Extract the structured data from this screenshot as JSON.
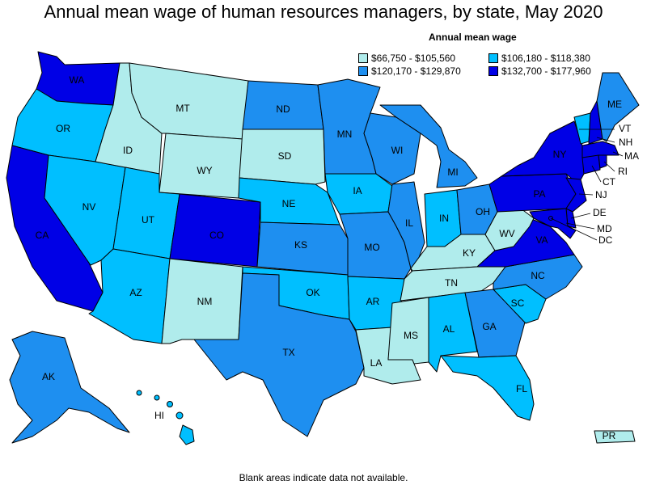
{
  "title": "Annual mean wage of human resources managers, by state, May 2020",
  "legend": {
    "title": "Annual mean wage",
    "items": [
      {
        "label": "$66,750 - $105,560",
        "color": "#b0ecec"
      },
      {
        "label": "$106,180 - $118,380",
        "color": "#00bfff"
      },
      {
        "label": "$120,170 - $129,870",
        "color": "#1e8ff0"
      },
      {
        "label": "$132,700 - $177,960",
        "color": "#0000e6"
      }
    ]
  },
  "footnote": "Blank areas indicate data not available.",
  "states": {
    "WA": 3,
    "OR": 1,
    "CA": 3,
    "NV": 1,
    "ID": 0,
    "MT": 0,
    "WY": 0,
    "UT": 1,
    "AZ": 1,
    "CO": 3,
    "NM": 0,
    "ND": 2,
    "SD": 0,
    "NE": 1,
    "KS": 2,
    "OK": 1,
    "TX": 2,
    "MN": 2,
    "IA": 1,
    "MO": 2,
    "AR": 1,
    "LA": 0,
    "WI": 2,
    "IL": 2,
    "MI": 2,
    "IN": 1,
    "OH": 2,
    "KY": 0,
    "TN": 0,
    "MS": 0,
    "AL": 1,
    "GA": 2,
    "FL": 1,
    "SC": 1,
    "NC": 2,
    "VA": 3,
    "WV": 0,
    "PA": 3,
    "NY": 3,
    "ME": 2,
    "VT": 1,
    "NH": 3,
    "MA": 3,
    "RI": 3,
    "CT": 3,
    "NJ": 3,
    "DE": 3,
    "MD": 3,
    "DC": 3,
    "AK": 2,
    "HI": 1,
    "PR": 0
  }
}
